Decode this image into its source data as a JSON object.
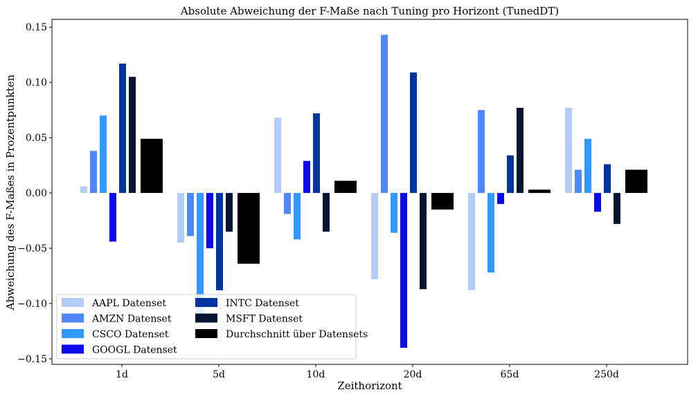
{
  "chart_data": {
    "type": "bar",
    "title": "Absolute Abweichung der F-Maße nach Tuning pro Horizont (TunedDT)",
    "xlabel": "Zeithorizont",
    "ylabel": "Abweichung des F-Maßes in Prozentpunkten",
    "categories": [
      "1d",
      "5d",
      "10d",
      "20d",
      "65d",
      "250d"
    ],
    "ylim": [
      -0.155,
      0.157
    ],
    "yticks": [
      -0.15,
      -0.1,
      -0.05,
      0.0,
      0.05,
      0.1,
      0.15
    ],
    "ytick_labels": [
      "−0.15",
      "−0.10",
      "−0.05",
      "0.00",
      "0.05",
      "0.10",
      "0.15"
    ],
    "grid": false,
    "legend_position": "lower-left",
    "series": [
      {
        "name": "AAPL Datenset",
        "color": "#b3ccfa",
        "values": [
          0.006,
          -0.045,
          0.068,
          -0.078,
          -0.088,
          0.077
        ]
      },
      {
        "name": "AMZN Datenset",
        "color": "#4d88f5",
        "values": [
          0.038,
          -0.039,
          -0.019,
          0.143,
          0.075,
          0.021
        ]
      },
      {
        "name": "CSCO Datenset",
        "color": "#3399ff",
        "values": [
          0.07,
          -0.118,
          -0.042,
          -0.036,
          -0.072,
          0.049
        ]
      },
      {
        "name": "GOOGL Datenset",
        "color": "#0a0aed",
        "values": [
          -0.044,
          -0.05,
          0.029,
          -0.14,
          -0.01,
          -0.017
        ]
      },
      {
        "name": "INTC Datenset",
        "color": "#03339c",
        "values": [
          0.117,
          -0.088,
          0.072,
          0.109,
          0.034,
          0.026
        ]
      },
      {
        "name": "MSFT Datenset",
        "color": "#051433",
        "values": [
          0.105,
          -0.035,
          -0.035,
          -0.087,
          0.077,
          -0.028
        ]
      },
      {
        "name": "Durchschnitt über Datensets",
        "color": "#000000",
        "values": [
          0.049,
          -0.064,
          0.011,
          -0.015,
          0.003,
          0.021
        ]
      }
    ]
  }
}
